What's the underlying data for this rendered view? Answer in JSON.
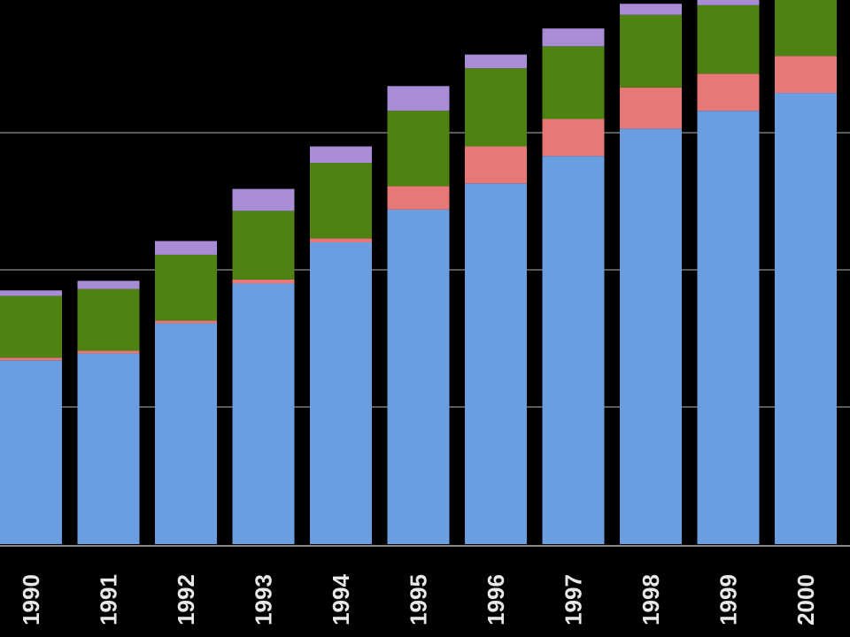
{
  "chart_data": {
    "type": "bar",
    "stacked": true,
    "title": "",
    "xlabel": "",
    "ylabel": "",
    "categories": [
      "1990",
      "1991",
      "1992",
      "1993",
      "1994",
      "1995",
      "1996",
      "1997",
      "1998",
      "1999",
      "2000"
    ],
    "ylim": [
      0,
      4
    ],
    "grid": true,
    "legend": "none",
    "series": [
      {
        "color": "#6a9ee0",
        "values": [
          1.34,
          1.39,
          1.61,
          1.9,
          2.2,
          2.44,
          2.63,
          2.83,
          3.03,
          3.16,
          3.29
        ]
      },
      {
        "color": "#e87878",
        "values": [
          0.02,
          0.02,
          0.02,
          0.03,
          0.03,
          0.17,
          0.27,
          0.27,
          0.3,
          0.27,
          0.27
        ]
      },
      {
        "color": "#4e8212",
        "values": [
          0.45,
          0.45,
          0.48,
          0.5,
          0.55,
          0.55,
          0.57,
          0.53,
          0.53,
          0.5,
          0.41
        ]
      },
      {
        "color": "#a98cd6",
        "values": [
          0.04,
          0.06,
          0.1,
          0.16,
          0.12,
          0.18,
          0.1,
          0.13,
          0.08,
          0.05,
          0.03
        ]
      }
    ]
  }
}
